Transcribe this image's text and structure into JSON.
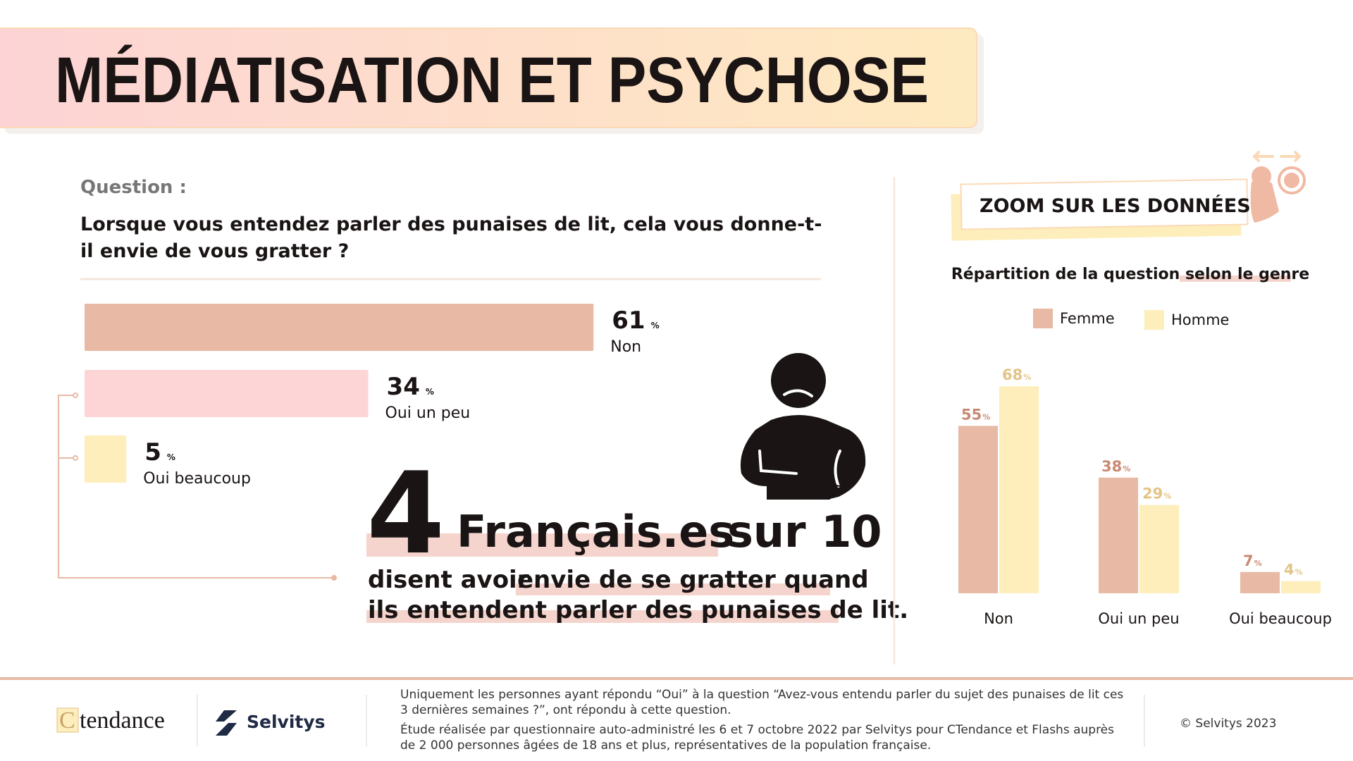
{
  "header": {
    "title": "MÉDIATISATION ET PSYCHOSE"
  },
  "question": {
    "label": "Question :",
    "text": "Lorsque vous entendez parler des punaises de lit, cela vous donne-t-il envie de vous gratter ?"
  },
  "chart_data": [
    {
      "type": "hbar",
      "categories": [
        "Non",
        "Oui un peu",
        "Oui beaucoup"
      ],
      "values": [
        61,
        34,
        5
      ],
      "unit": "%",
      "colors": [
        "#e8b9a4",
        "#fdd5d6",
        "#fdeebb"
      ]
    },
    {
      "type": "bar",
      "title": "Répartition de la question selon le genre",
      "categories": [
        "Non",
        "Oui un peu",
        "Oui beaucoup"
      ],
      "unit": "%",
      "series": [
        {
          "name": "Femme",
          "color": "#e8b9a4",
          "label_color": "#c98a73",
          "values": [
            55,
            38,
            7
          ]
        },
        {
          "name": "Homme",
          "color": "#fdeebb",
          "label_color": "#e3c487",
          "values": [
            68,
            29,
            4
          ]
        }
      ]
    }
  ],
  "highlight": {
    "number": "4",
    "subject": "Français.es",
    "ratio": "sur 10",
    "lead": "disent avoir",
    "phrase_1": "envie de se gratter quand",
    "phrase_2": "ils entendent parler des punaises de lit."
  },
  "zoom": {
    "label": "ZOOM SUR LES DONNÉES"
  },
  "footer": {
    "brand_1_mark": "C",
    "brand_1": "tendance",
    "brand_2": "Selvitys",
    "note_1": "Uniquement les personnes ayant répondu “Oui” à la question “Avez-vous entendu parler du sujet des punaises de lit ces 3 dernières semaines ?”, ont répondu à cette question.",
    "note_2": "Étude réalisée par questionnaire auto-administré les 6 et 7 octobre 2022 par Selvitys pour CTendance et Flashs auprès de 2 000 personnes âgées de 18 ans et plus, représentatives de la population française.",
    "copyright": "© Selvitys 2023"
  }
}
